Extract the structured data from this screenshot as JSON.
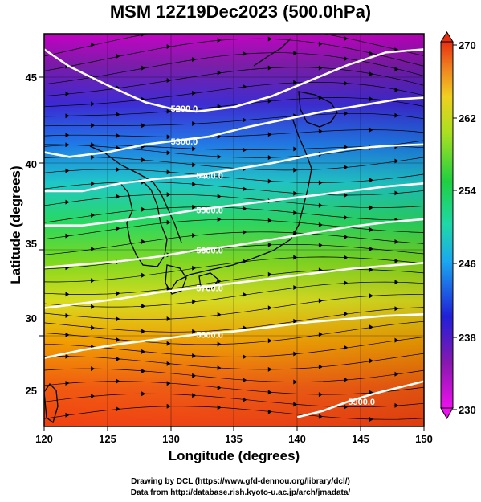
{
  "title": "MSM 12Z19Dec2023 (500.0hPa)",
  "x_axis": {
    "label": "Longitude (degrees)",
    "ticks": [
      "120",
      "125",
      "130",
      "135",
      "140",
      "145",
      "150"
    ]
  },
  "y_axis": {
    "label": "Latitude  (degrees)",
    "ticks": [
      "25",
      "30",
      "35",
      "40",
      "45"
    ]
  },
  "colorbar": {
    "ticks": [
      "270",
      "262",
      "254",
      "246",
      "238",
      "230"
    ]
  },
  "contour_labels": [
    "5200.0",
    "5300.0",
    "5400.0",
    "5500.0",
    "5600.0",
    "5700.0",
    "5800.0",
    "5900.0"
  ],
  "credits": {
    "line1": "Drawing by DCL (https://www.gfd-dennou.org/library/dcl/)",
    "line2": "Data from http://database.rish.kyoto-u.ac.jp/arch/jmadata/"
  },
  "chart_data": {
    "type": "heatmap",
    "title": "MSM 12Z19Dec2023 (500.0hPa)",
    "xlabel": "Longitude (degrees)",
    "ylabel": "Latitude  (degrees)",
    "xlim": [
      120,
      150
    ],
    "ylim": [
      22.4,
      47.6
    ],
    "colorbar_range": [
      230,
      270
    ],
    "colorbar_ticks": [
      230,
      238,
      246,
      254,
      262,
      270
    ],
    "contours": [
      {
        "label": "5200.0",
        "points": [
          [
            120,
            46.6
          ],
          [
            122,
            45.5
          ],
          [
            125,
            44.3
          ],
          [
            128,
            43.2
          ],
          [
            130,
            42.8
          ],
          [
            132,
            42.6
          ],
          [
            135,
            42.9
          ],
          [
            138,
            43.6
          ],
          [
            141,
            44.6
          ],
          [
            144,
            45.6
          ],
          [
            147,
            46.4
          ],
          [
            150,
            46.6
          ]
        ]
      },
      {
        "label": "5300.0",
        "points": [
          [
            120,
            40.0
          ],
          [
            122,
            39.7
          ],
          [
            125,
            40.0
          ],
          [
            128,
            40.5
          ],
          [
            130,
            40.7
          ],
          [
            133,
            41.0
          ],
          [
            136,
            41.6
          ],
          [
            139,
            42.1
          ],
          [
            142,
            42.6
          ],
          [
            145,
            43.0
          ],
          [
            148,
            43.4
          ],
          [
            150,
            43.5
          ]
        ]
      },
      {
        "label": "5400.0",
        "points": [
          [
            120,
            37.5
          ],
          [
            123,
            37.5
          ],
          [
            126,
            38.0
          ],
          [
            129,
            38.3
          ],
          [
            132,
            38.5
          ],
          [
            135,
            38.9
          ],
          [
            138,
            39.3
          ],
          [
            141,
            39.8
          ],
          [
            144,
            40.2
          ],
          [
            147,
            40.4
          ],
          [
            150,
            40.5
          ]
        ]
      },
      {
        "label": "5500.0",
        "points": [
          [
            120,
            35.3
          ],
          [
            123,
            35.3
          ],
          [
            126,
            35.6
          ],
          [
            129,
            35.9
          ],
          [
            132,
            36.3
          ],
          [
            135,
            36.6
          ],
          [
            138,
            36.9
          ],
          [
            141,
            37.2
          ],
          [
            144,
            37.5
          ],
          [
            147,
            37.8
          ],
          [
            150,
            38.0
          ]
        ]
      },
      {
        "label": "5600.0",
        "points": [
          [
            120,
            32.6
          ],
          [
            123,
            32.8
          ],
          [
            126,
            33.0
          ],
          [
            129,
            33.3
          ],
          [
            132,
            33.7
          ],
          [
            135,
            34.0
          ],
          [
            138,
            34.4
          ],
          [
            141,
            34.8
          ],
          [
            144,
            35.2
          ],
          [
            147,
            35.5
          ],
          [
            150,
            35.7
          ]
        ]
      },
      {
        "label": "5700.0",
        "points": [
          [
            120,
            30.0
          ],
          [
            123,
            30.3
          ],
          [
            126,
            30.6
          ],
          [
            129,
            31.0
          ],
          [
            132,
            31.3
          ],
          [
            135,
            31.6
          ],
          [
            138,
            31.9
          ],
          [
            141,
            32.2
          ],
          [
            144,
            32.5
          ],
          [
            147,
            32.7
          ],
          [
            150,
            32.9
          ]
        ]
      },
      {
        "label": "5800.0",
        "points": [
          [
            120,
            26.8
          ],
          [
            123,
            27.3
          ],
          [
            126,
            27.7
          ],
          [
            129,
            28.0
          ],
          [
            132,
            28.3
          ],
          [
            135,
            28.5
          ],
          [
            138,
            28.8
          ],
          [
            141,
            29.1
          ],
          [
            144,
            29.3
          ],
          [
            147,
            29.5
          ],
          [
            150,
            29.6
          ]
        ]
      },
      {
        "label": "5900.0",
        "points": [
          [
            140,
            23.0
          ],
          [
            142,
            23.4
          ],
          [
            144,
            24.0
          ],
          [
            146,
            24.5
          ],
          [
            148,
            24.9
          ],
          [
            150,
            25.3
          ]
        ]
      }
    ]
  }
}
